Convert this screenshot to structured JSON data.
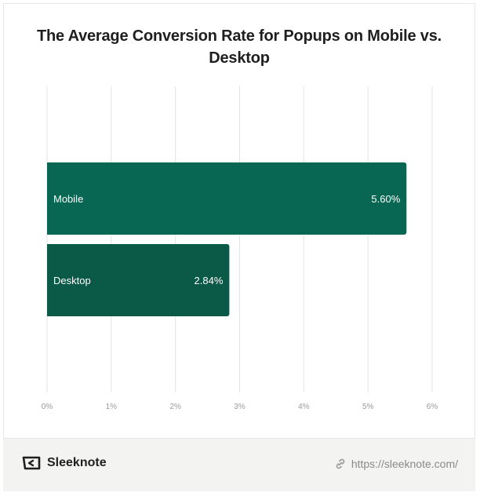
{
  "chart_data": {
    "type": "bar",
    "orientation": "horizontal",
    "title": "The Average Conversion Rate for Popups on Mobile vs. Desktop",
    "categories": [
      "Mobile",
      "Desktop"
    ],
    "values": [
      5.6,
      2.84
    ],
    "value_labels": [
      "5.60%",
      "2.84%"
    ],
    "xlim": [
      0,
      6
    ],
    "x_ticks": [
      0,
      1,
      2,
      3,
      4,
      5,
      6
    ],
    "x_tick_labels": [
      "0%",
      "1%",
      "2%",
      "3%",
      "4%",
      "5%",
      "6%"
    ],
    "grid": true,
    "colors": [
      "#086752",
      "#0b5a48"
    ]
  },
  "footer": {
    "brand": "Sleeknote",
    "url": "https://sleeknote.com/",
    "brand_icon": "sleeknote-logo-icon",
    "url_icon": "link-icon"
  }
}
